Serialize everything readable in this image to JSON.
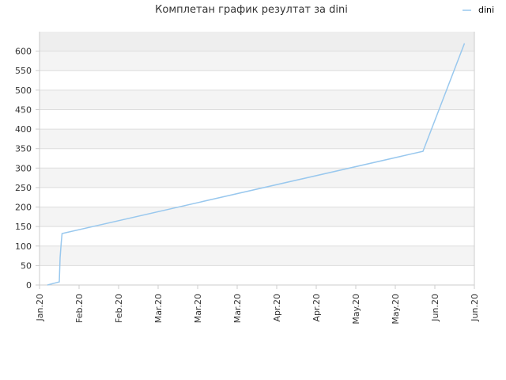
{
  "chart_data": {
    "type": "line",
    "title": "Комплетан график резултат за dini",
    "xlabel": "",
    "ylabel": "",
    "ylim": [
      0,
      650
    ],
    "yticks": [
      0,
      50,
      100,
      150,
      200,
      250,
      300,
      350,
      400,
      450,
      500,
      550,
      600
    ],
    "x_tick_labels": [
      "Jan.20",
      "Feb.20",
      "Feb.20",
      "Mar.20",
      "Mar.20",
      "Mar.20",
      "Apr.20",
      "Apr.20",
      "May.20",
      "May.20",
      "Jun.20",
      "Jun.20"
    ],
    "grid": true,
    "legend_position": "top-right",
    "colors": {
      "line": "#99c8ee",
      "band_dark": "#eeeeee",
      "band_light": "#f4f4f4",
      "band_white": "#ffffff",
      "gridline": "#dddddd",
      "axis": "#cccccc"
    },
    "series": [
      {
        "name": "dini",
        "x": [
          "Jan.20",
          "Jan.20",
          "Jan.20",
          "Jan.20",
          "Jan.20",
          "Jun.20",
          "Jun.20"
        ],
        "x_index": [
          0.2,
          0.5,
          0.52,
          0.55,
          0.57,
          9.7,
          10.75
        ],
        "values": [
          0,
          8,
          70,
          110,
          132,
          343,
          620
        ]
      }
    ]
  }
}
